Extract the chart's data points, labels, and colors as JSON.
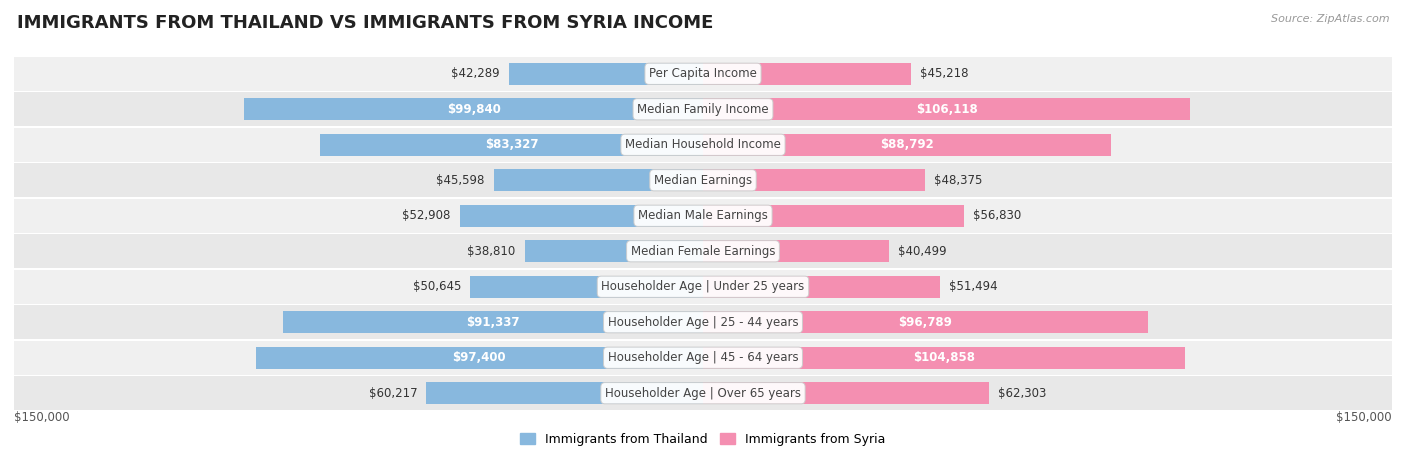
{
  "title": "IMMIGRANTS FROM THAILAND VS IMMIGRANTS FROM SYRIA INCOME",
  "source": "Source: ZipAtlas.com",
  "categories": [
    "Per Capita Income",
    "Median Family Income",
    "Median Household Income",
    "Median Earnings",
    "Median Male Earnings",
    "Median Female Earnings",
    "Householder Age | Under 25 years",
    "Householder Age | 25 - 44 years",
    "Householder Age | 45 - 64 years",
    "Householder Age | Over 65 years"
  ],
  "thailand_values": [
    42289,
    99840,
    83327,
    45598,
    52908,
    38810,
    50645,
    91337,
    97400,
    60217
  ],
  "syria_values": [
    45218,
    106118,
    88792,
    48375,
    56830,
    40499,
    51494,
    96789,
    104858,
    62303
  ],
  "thailand_labels": [
    "$42,289",
    "$99,840",
    "$83,327",
    "$45,598",
    "$52,908",
    "$38,810",
    "$50,645",
    "$91,337",
    "$97,400",
    "$60,217"
  ],
  "syria_labels": [
    "$45,218",
    "$106,118",
    "$88,792",
    "$48,375",
    "$56,830",
    "$40,499",
    "$51,494",
    "$96,789",
    "$104,858",
    "$62,303"
  ],
  "max_val": 150000,
  "thailand_color": "#88b8de",
  "syria_color": "#f48fb1",
  "row_bg_even": "#f0f0f0",
  "row_bg_odd": "#e8e8e8",
  "row_separator": "#ffffff",
  "inside_label_threshold": 65000,
  "title_fontsize": 13,
  "label_fontsize": 8.5,
  "category_fontsize": 8.5,
  "legend_label_thailand": "Immigrants from Thailand",
  "legend_label_syria": "Immigrants from Syria"
}
